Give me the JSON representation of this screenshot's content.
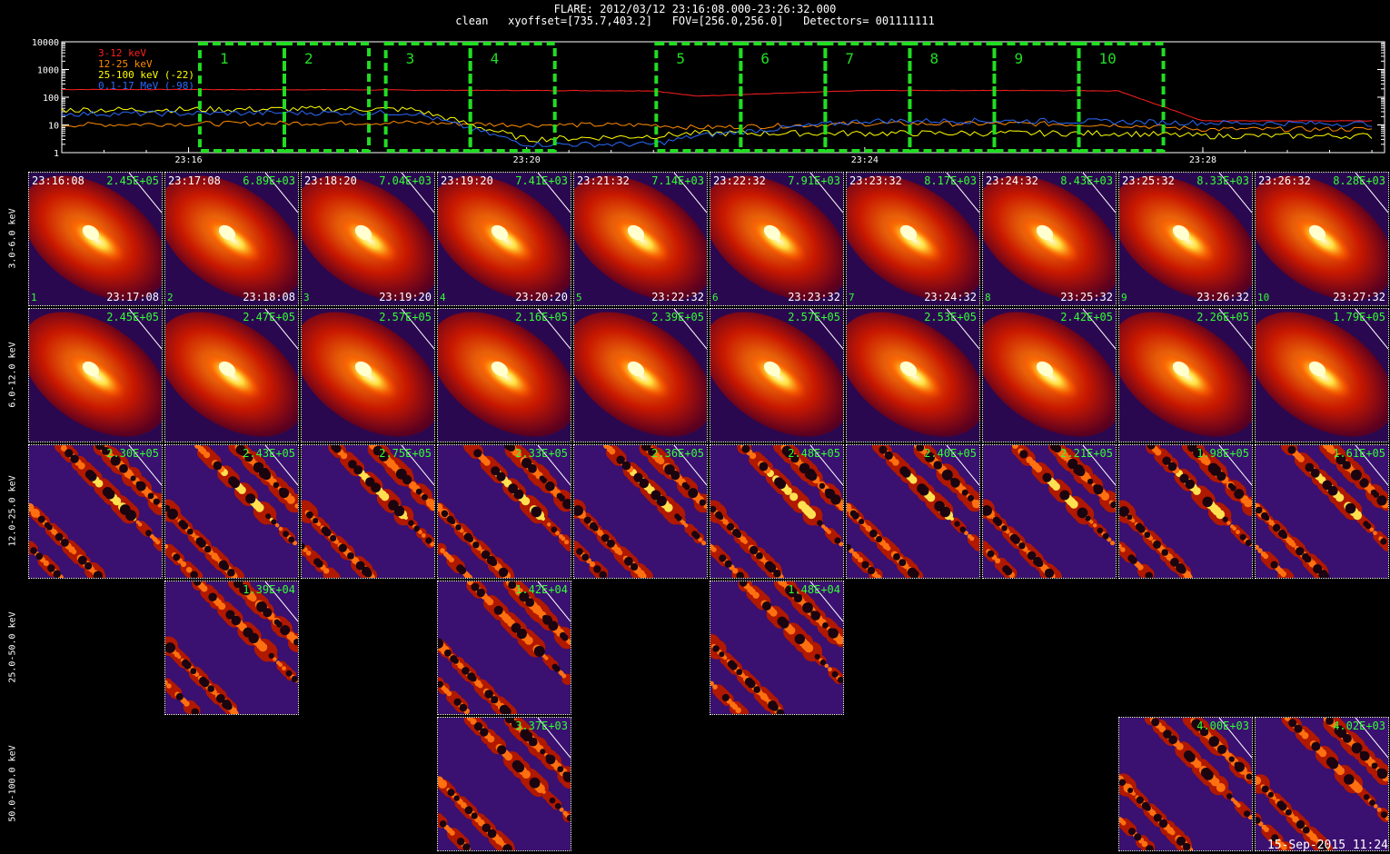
{
  "title": {
    "line1": "FLARE: 2012/03/12 23:16:08.000-23:26:32.000",
    "line2": "clean   xyoffset=[735.7,403.2]   FOV=[256.0,256.0]   Detectors= 001111111"
  },
  "lightcurve": {
    "legend": [
      {
        "label": "3-12 keV",
        "color": "#ff2020"
      },
      {
        "label": "12-25 keV",
        "color": "#ff8c00"
      },
      {
        "label": "25-100 keV (-22)",
        "color": "#ffff00"
      },
      {
        "label": "0.1-17 MeV (-98)",
        "color": "#2a6bff"
      }
    ],
    "y_ticks": [
      "10000",
      "1000",
      "100",
      "10",
      "1"
    ],
    "x_ticks": [
      "23:16",
      "23:20",
      "23:24",
      "23:28"
    ],
    "intervals": [
      "1",
      "2",
      "3",
      "4",
      "5",
      "6",
      "7",
      "8",
      "9",
      "10"
    ],
    "interval_color": "#22dd22"
  },
  "chart_data": {
    "type": "line",
    "xlabel": "",
    "ylabel": "",
    "y_scale": "log",
    "ylim": [
      1,
      10000
    ],
    "x": [
      "23:14:30",
      "23:16:00",
      "23:18:00",
      "23:18:40",
      "23:20:00",
      "23:21:30",
      "23:22:00",
      "23:24:00",
      "23:26:00",
      "23:27:00",
      "23:28:00",
      "23:30:00"
    ],
    "series": [
      {
        "name": "3-12 keV",
        "values": [
          190,
          190,
          185,
          180,
          175,
          170,
          110,
          175,
          175,
          170,
          14,
          14
        ]
      },
      {
        "name": "12-25 keV",
        "values": [
          10,
          11,
          12,
          12,
          10,
          10,
          8,
          11,
          11,
          10,
          7,
          7
        ]
      },
      {
        "name": "25-100 keV (-22)",
        "values": [
          35,
          36,
          38,
          36,
          3,
          4,
          5,
          5,
          5,
          5,
          4,
          4
        ]
      },
      {
        "name": "0.1-17 MeV (-98)",
        "values": [
          25,
          26,
          28,
          27,
          2,
          2,
          4,
          14,
          14,
          13,
          12,
          11
        ]
      }
    ]
  },
  "bands": [
    "3.0-6.0 keV",
    "6.0-12.0 keV",
    "12.0-25.0 keV",
    "25.0-50.0 keV",
    "50.0-100.0 keV"
  ],
  "time_starts": [
    "23:16:08",
    "23:17:08",
    "23:18:20",
    "23:19:20",
    "23:21:32",
    "23:22:32",
    "23:23:32",
    "23:24:32",
    "23:25:32",
    "23:26:32"
  ],
  "time_ends": [
    "23:17:08",
    "23:18:08",
    "23:19:20",
    "23:20:20",
    "23:22:32",
    "23:23:32",
    "23:24:32",
    "23:25:32",
    "23:26:32",
    "23:27:32"
  ],
  "peaks": [
    [
      "2.45E+05",
      "6.89E+03",
      "7.04E+03",
      "7.41E+03",
      "7.14E+03",
      "7.91E+03",
      "8.17E+03",
      "8.43E+03",
      "8.33E+03",
      "8.28E+03"
    ],
    [
      "2.45E+05",
      "2.47E+05",
      "2.57E+05",
      "2.16E+05",
      "2.39E+05",
      "2.57E+05",
      "2.53E+05",
      "2.42E+05",
      "2.26E+05",
      "1.79E+05"
    ],
    [
      "2.30E+05",
      "2.43E+05",
      "2.75E+05",
      "2.33E+05",
      "2.36E+05",
      "2.48E+05",
      "2.40E+05",
      "2.21E+05",
      "1.98E+05",
      "1.61E+05"
    ],
    [
      "",
      "1.39E+04",
      "",
      "1.42E+04",
      "",
      "1.48E+04",
      "",
      "",
      "",
      ""
    ],
    [
      "",
      "",
      "",
      "3.37E+03",
      "",
      "",
      "",
      "",
      "4.00E+03",
      "4.02E+03"
    ]
  ],
  "footer_stamp": "15-Sep-2015 11:24"
}
